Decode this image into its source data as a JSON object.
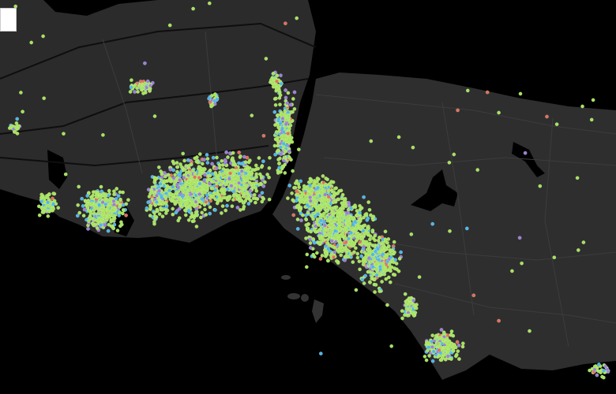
{
  "map": {
    "background_water": "#000000",
    "land_color": "#2b2b2b",
    "road_color": "#111111",
    "highway_color": "#3a3a3a",
    "point_colors": {
      "primary": "#a6e35c",
      "secondary": "#4fb6ea",
      "tertiary": "#9a80d6",
      "accent": "#e0705c"
    }
  }
}
